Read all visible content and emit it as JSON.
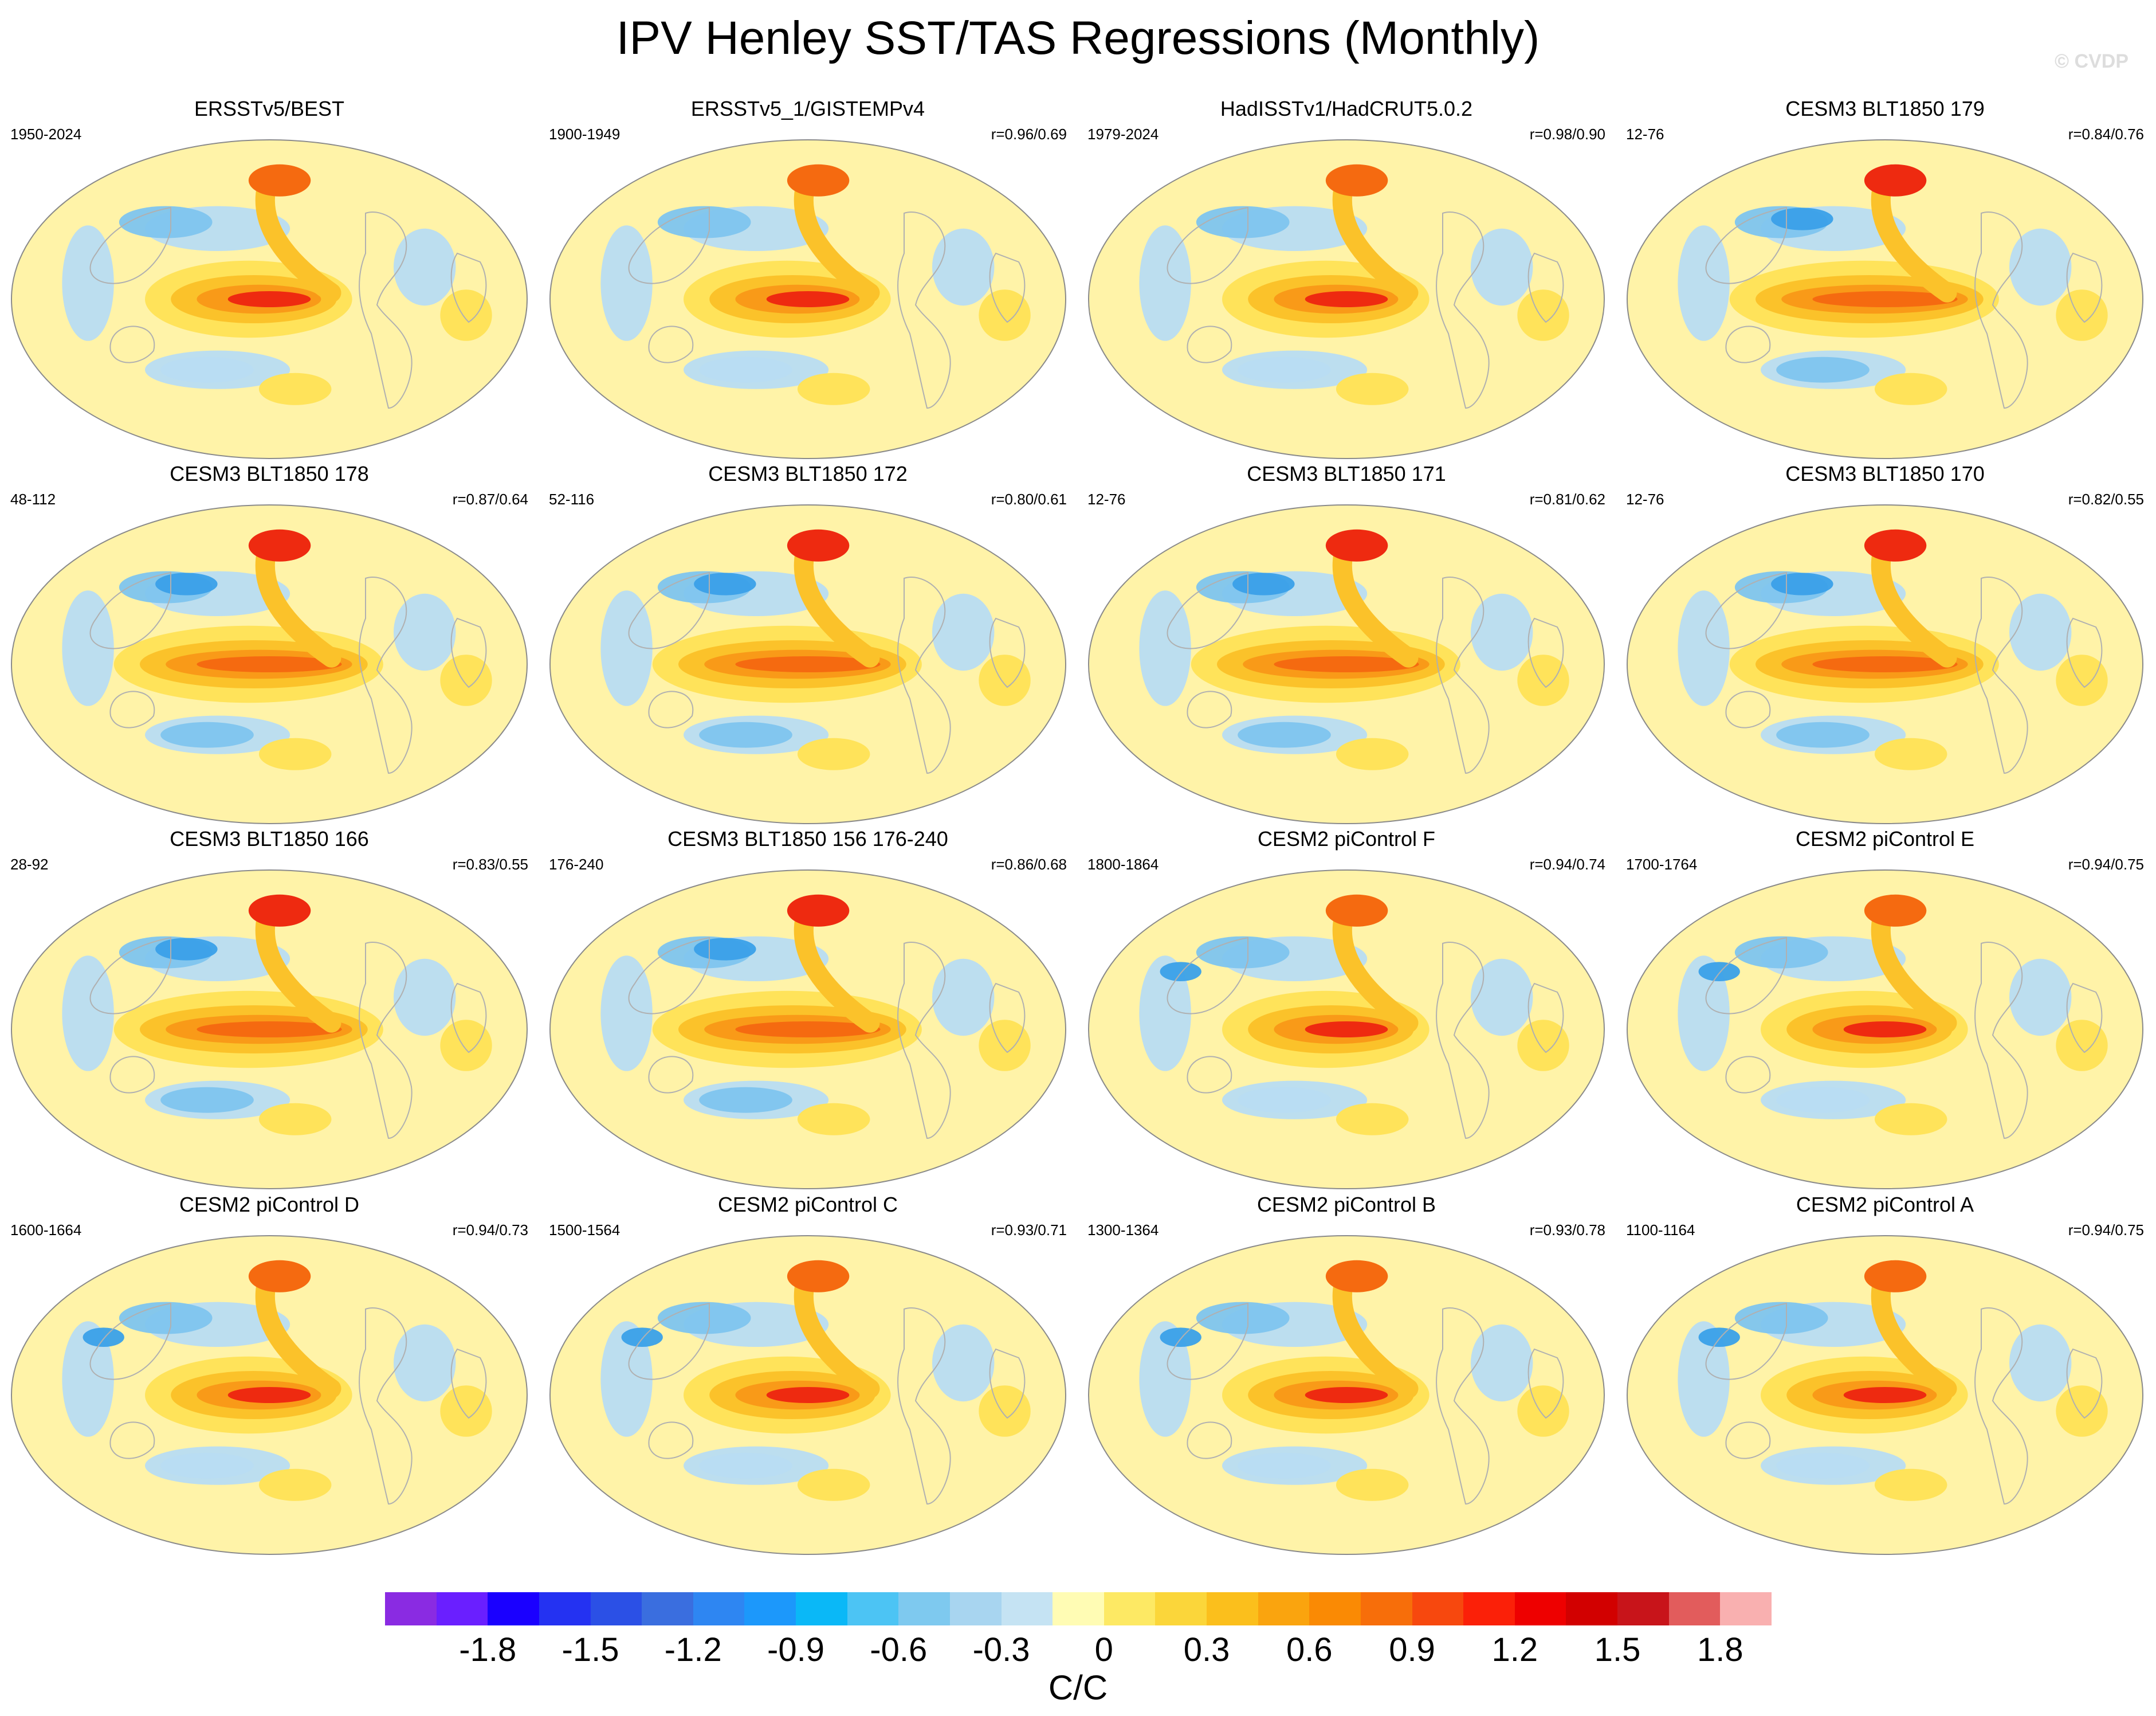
{
  "title": "IPV Henley SST/TAS Regressions (Monthly)",
  "watermark": "© CVDP",
  "panels": [
    {
      "title": "ERSSTv5/BEST",
      "period": "1950-2024",
      "corr": "",
      "variant": 0
    },
    {
      "title": "ERSSTv5_1/GISTEMPv4",
      "period": "1900-1949",
      "corr": "r=0.96/0.69",
      "variant": 0
    },
    {
      "title": "HadISSTv1/HadCRUT5.0.2",
      "period": "1979-2024",
      "corr": "r=0.98/0.90",
      "variant": 0
    },
    {
      "title": "CESM3 BLT1850 179",
      "period": "12-76",
      "corr": "r=0.84/0.76",
      "variant": 1
    },
    {
      "title": "CESM3 BLT1850 178",
      "period": "48-112",
      "corr": "r=0.87/0.64",
      "variant": 1
    },
    {
      "title": "CESM3 BLT1850 172",
      "period": "52-116",
      "corr": "r=0.80/0.61",
      "variant": 1
    },
    {
      "title": "CESM3 BLT1850 171",
      "period": "12-76",
      "corr": "r=0.81/0.62",
      "variant": 1
    },
    {
      "title": "CESM3 BLT1850 170",
      "period": "12-76",
      "corr": "r=0.82/0.55",
      "variant": 1
    },
    {
      "title": "CESM3 BLT1850 166",
      "period": "28-92",
      "corr": "r=0.83/0.55",
      "variant": 1
    },
    {
      "title": "CESM3 BLT1850 156 176-240",
      "period": "176-240",
      "corr": "r=0.86/0.68",
      "variant": 1
    },
    {
      "title": "CESM2 piControl F",
      "period": "1800-1864",
      "corr": "r=0.94/0.74",
      "variant": 2
    },
    {
      "title": "CESM2 piControl E",
      "period": "1700-1764",
      "corr": "r=0.94/0.75",
      "variant": 2
    },
    {
      "title": "CESM2 piControl D",
      "period": "1600-1664",
      "corr": "r=0.94/0.73",
      "variant": 2
    },
    {
      "title": "CESM2 piControl C",
      "period": "1500-1564",
      "corr": "r=0.93/0.71",
      "variant": 2
    },
    {
      "title": "CESM2 piControl B",
      "period": "1300-1364",
      "corr": "r=0.93/0.78",
      "variant": 2
    },
    {
      "title": "CESM2 piControl A",
      "period": "1100-1164",
      "corr": "r=0.94/0.75",
      "variant": 2
    }
  ],
  "colorbar": {
    "colors": [
      "#8a2be2",
      "#6a1fff",
      "#1a00ff",
      "#2432f2",
      "#2b50e6",
      "#3a6edf",
      "#2e86f2",
      "#1c98fb",
      "#0ab8f7",
      "#4cc4f4",
      "#7ec9ef",
      "#a8d5f0",
      "#c5e3f3",
      "#fffcb4",
      "#fde964",
      "#fbd63a",
      "#fbbf1c",
      "#faa40e",
      "#fa8a04",
      "#f76e0a",
      "#f7480e",
      "#fb2008",
      "#ee0000",
      "#d20000",
      "#c8141a",
      "#e25c5c",
      "#f9b0b0"
    ],
    "ticks": [
      "-1.8",
      "-1.5",
      "-1.2",
      "-0.9",
      "-0.6",
      "-0.3",
      "0",
      "0.3",
      "0.6",
      "0.9",
      "1.2",
      "1.5",
      "1.8"
    ],
    "units": "C/C"
  },
  "map_palette": {
    "background": "#fff3a8",
    "cool_light": "#b8dcf2",
    "cool": "#7ec4ee",
    "cool_dark": "#3aa0e8",
    "warm_light": "#ffe35a",
    "warm": "#fbc22a",
    "warm_mid": "#f99a18",
    "warm_dark": "#f56a10",
    "hot": "#ee2a10",
    "land_outline": "#b0b0b0"
  }
}
